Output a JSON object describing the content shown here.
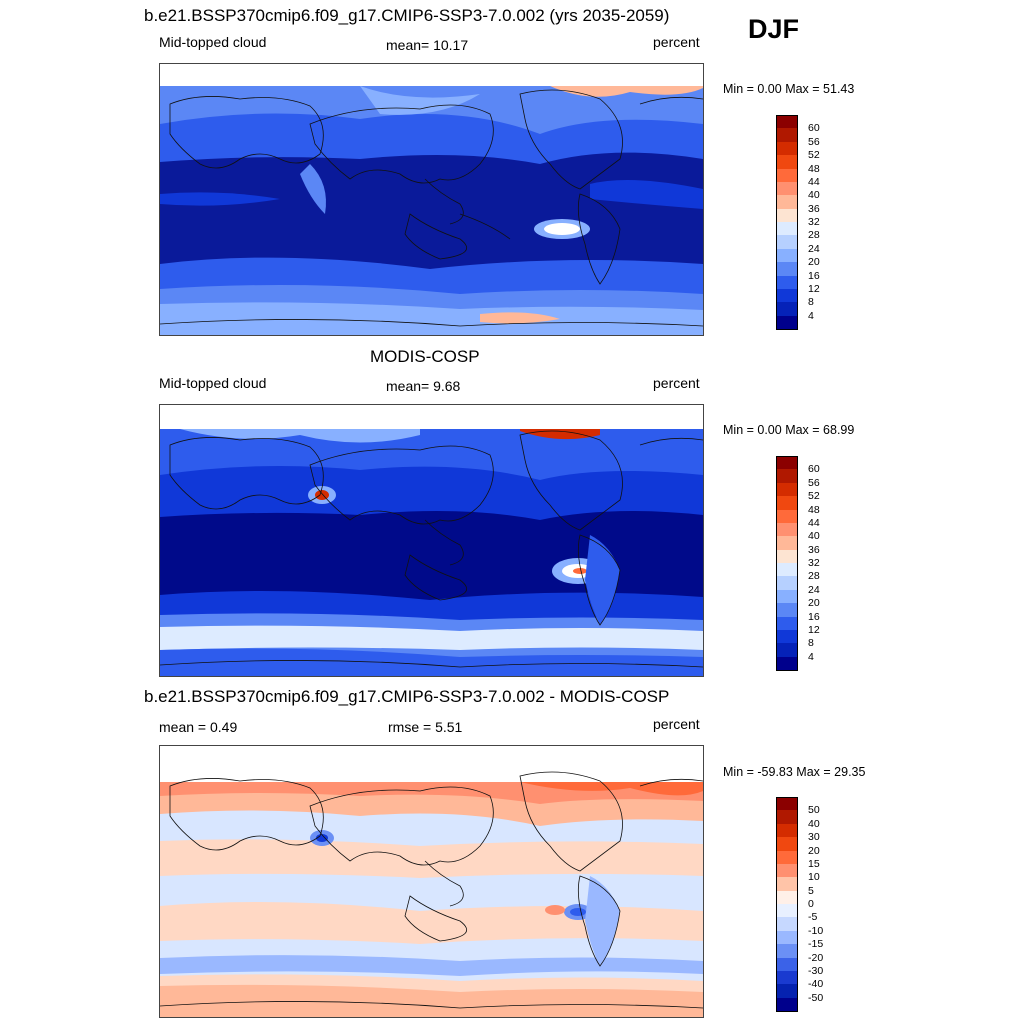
{
  "season": "DJF",
  "panels": [
    {
      "title": "b.e21.BSSP370cmip6.f09_g17.CMIP6-SSP3-7.0.002 (yrs 2035-2059)",
      "left_label": "Mid-topped cloud",
      "center_label": "mean=  10.17",
      "right_label": "percent",
      "minmax": "Min =   0.00 Max =  51.43",
      "colorbar": {
        "ticks": [
          "60",
          "56",
          "52",
          "48",
          "44",
          "40",
          "36",
          "32",
          "28",
          "24",
          "20",
          "16",
          "12",
          "8",
          "4"
        ],
        "colors": [
          "#8b0000",
          "#b01800",
          "#d42c00",
          "#f04810",
          "#ff6a3a",
          "#ff9070",
          "#ffb898",
          "#fde4d2",
          "#ddebff",
          "#b6d0ff",
          "#88b0ff",
          "#5b87f5",
          "#2e5ced",
          "#1038d8",
          "#0522b8",
          "#00008c"
        ]
      },
      "map": {
        "background": "#000a8a",
        "features": [
          {
            "name": "north-cloud-band",
            "color": "#3a6ef0"
          },
          {
            "name": "south-cloud-band",
            "color": "#3a6ef0"
          },
          {
            "name": "antarctic-band",
            "color": "#7fa7ff"
          },
          {
            "name": "arctic-high",
            "color": "#ffb898"
          },
          {
            "name": "peru-stratocumulus-max",
            "color": "#ffffff"
          }
        ]
      }
    },
    {
      "title": "MODIS-COSP",
      "left_label": "Mid-topped cloud",
      "center_label": "mean=   9.68",
      "right_label": "percent",
      "minmax": "Min =   0.00 Max =  68.99",
      "colorbar": {
        "ticks": [
          "60",
          "56",
          "52",
          "48",
          "44",
          "40",
          "36",
          "32",
          "28",
          "24",
          "20",
          "16",
          "12",
          "8",
          "4"
        ],
        "colors": [
          "#8b0000",
          "#b01800",
          "#d42c00",
          "#f04810",
          "#ff6a3a",
          "#ff9070",
          "#ffb898",
          "#fde4d2",
          "#ddebff",
          "#b6d0ff",
          "#88b0ff",
          "#5b87f5",
          "#2e5ced",
          "#1038d8",
          "#0522b8",
          "#00008c"
        ]
      },
      "map": {
        "background": "#000a8a",
        "features": [
          {
            "name": "north-cloud-band",
            "color": "#2e5ced"
          },
          {
            "name": "south-cloud-band",
            "color": "#2e5ced"
          },
          {
            "name": "antarctic-band",
            "color": "#ddebff"
          },
          {
            "name": "china-max",
            "color": "#d42c00"
          },
          {
            "name": "peru-stratocumulus-max",
            "color": "#ffffff"
          }
        ]
      }
    },
    {
      "title": "b.e21.BSSP370cmip6.f09_g17.CMIP6-SSP3-7.0.002 - MODIS-COSP",
      "left_label": "mean =   0.49",
      "center_label": "rmse =   5.51",
      "right_label": "percent",
      "minmax": "Min = -59.83 Max =  29.35",
      "colorbar": {
        "ticks": [
          "50",
          "40",
          "30",
          "20",
          "15",
          "10",
          "5",
          "0",
          "-5",
          "-10",
          "-15",
          "-20",
          "-30",
          "-40",
          "-50"
        ],
        "colors": [
          "#8b0000",
          "#b01800",
          "#d42c00",
          "#f04810",
          "#ff6a3a",
          "#ff9070",
          "#ffc4a8",
          "#fff0e8",
          "#e8f0ff",
          "#c6d8ff",
          "#9ab8ff",
          "#6b90f5",
          "#3b62e8",
          "#1a3ad0",
          "#0522b0",
          "#00008c"
        ]
      },
      "map": {
        "background": "#d4e4ff",
        "features": [
          {
            "name": "northern-high-lat-positive",
            "color": "#ff9070"
          },
          {
            "name": "tropical-positive",
            "color": "#ffd8c4"
          },
          {
            "name": "china-negative",
            "color": "#1038d8"
          },
          {
            "name": "peru-negative",
            "color": "#2e5ced"
          },
          {
            "name": "southern-ocean-positive",
            "color": "#ffb898"
          }
        ]
      }
    }
  ]
}
